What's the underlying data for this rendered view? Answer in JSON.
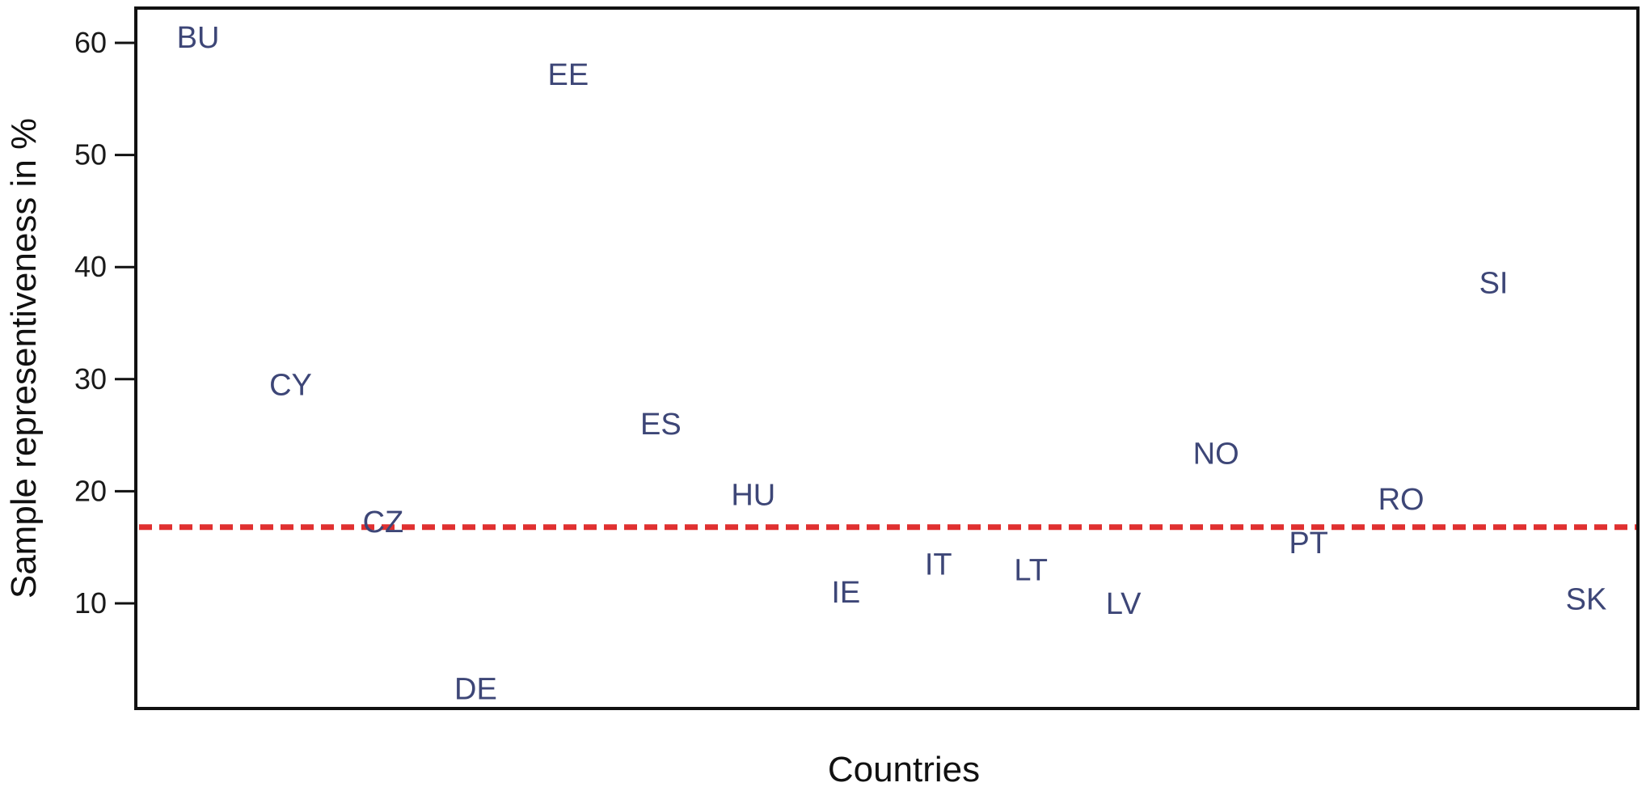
{
  "chart_data": {
    "type": "scatter",
    "title": "",
    "xlabel": "Countries",
    "ylabel": "Sample representiveness in %",
    "yticks": [
      10,
      20,
      30,
      40,
      50,
      60
    ],
    "ylim": [
      0,
      63
    ],
    "grid": false,
    "reference_line": {
      "y": 16.8,
      "style": "dashed",
      "color": "#e03030"
    },
    "label_color": "#3d4677",
    "points": [
      {
        "label": "BU",
        "x": 1,
        "y": 60.5
      },
      {
        "label": "CY",
        "x": 2,
        "y": 29.5
      },
      {
        "label": "CZ",
        "x": 3,
        "y": 17.3
      },
      {
        "label": "DE",
        "x": 4,
        "y": 2.4
      },
      {
        "label": "EE",
        "x": 5,
        "y": 57.2
      },
      {
        "label": "ES",
        "x": 6,
        "y": 26.0
      },
      {
        "label": "HU",
        "x": 7,
        "y": 19.7
      },
      {
        "label": "IE",
        "x": 8,
        "y": 11.0
      },
      {
        "label": "IT",
        "x": 9,
        "y": 13.5
      },
      {
        "label": "LT",
        "x": 10,
        "y": 13.0
      },
      {
        "label": "LV",
        "x": 11,
        "y": 10.0
      },
      {
        "label": "NO",
        "x": 12,
        "y": 23.4
      },
      {
        "label": "PT",
        "x": 13,
        "y": 15.4
      },
      {
        "label": "RO",
        "x": 14,
        "y": 19.3
      },
      {
        "label": "SI",
        "x": 15,
        "y": 38.6
      },
      {
        "label": "SK",
        "x": 16,
        "y": 10.4
      }
    ]
  }
}
